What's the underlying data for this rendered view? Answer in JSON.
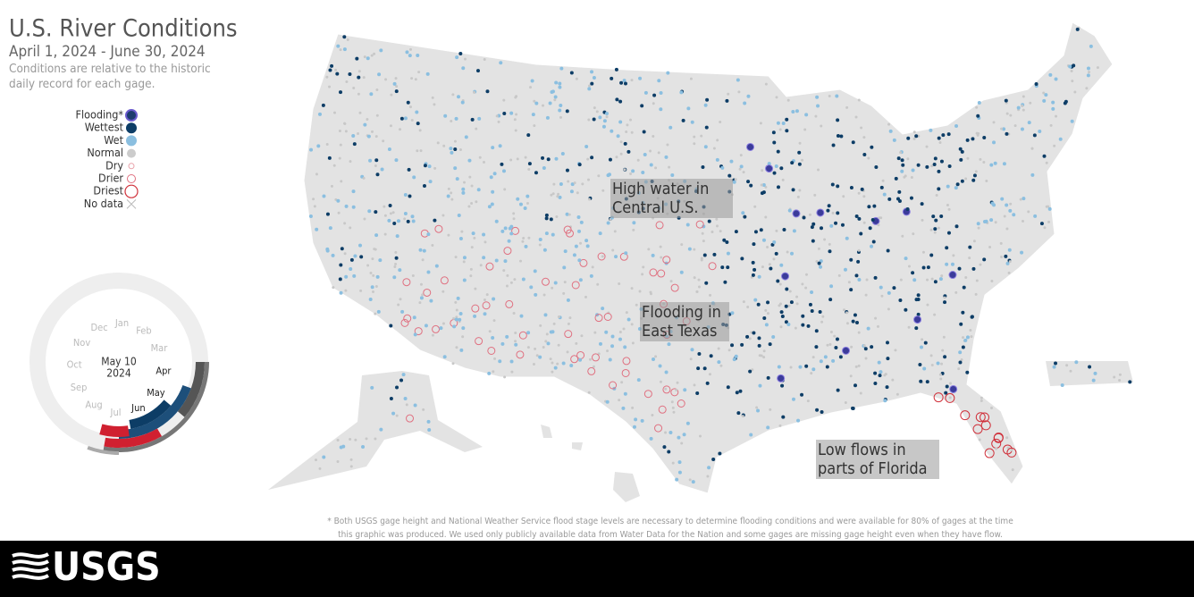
{
  "header": {
    "title": "U.S. River Conditions",
    "subtitle": "April 1, 2024 - June 30, 2024",
    "note": [
      "Conditions are relative to the historic",
      "daily record for each gage."
    ]
  },
  "legend": [
    "Flooding*",
    "Wettest",
    "Wet",
    "Normal",
    "Dry",
    "Drier",
    "Driest",
    "No data"
  ],
  "clock": {
    "months": [
      "Jan",
      "Feb",
      "Mar",
      "Apr",
      "May",
      "Jun",
      "Jul",
      "Aug",
      "Sep",
      "Oct",
      "Nov",
      "Dec"
    ],
    "date": "May 10",
    "year": "2024"
  },
  "annotations": [
    [
      "High water in",
      "Central U.S."
    ],
    [
      "Flooding in",
      "East Texas"
    ],
    [
      "Low flows in",
      "parts of Florida"
    ]
  ],
  "footnote": [
    "* Both USGS gage height and National Weather Service flood stage levels are necessary to determine flooding conditions and were available for 80% of gages at the time",
    "this graphic was produced. We used only publicly available data from Water Data for the Nation and some gages are missing gage height even when they have flow."
  ],
  "logo": "USGS"
}
